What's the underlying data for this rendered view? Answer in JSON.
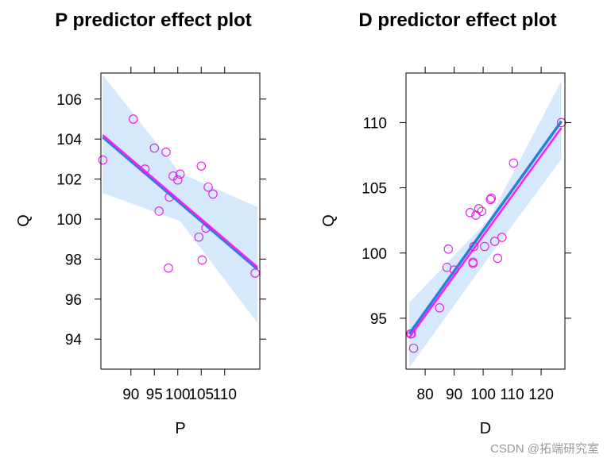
{
  "chart_data": [
    {
      "type": "scatter",
      "title": "P predictor effect plot",
      "xlabel": "P",
      "ylabel": "Q",
      "xlim": [
        83.6,
        117.5
      ],
      "ylim": [
        92.5,
        107.3
      ],
      "xticks": [
        90,
        95,
        100,
        105,
        110
      ],
      "xtick_labels": [
        "90",
        "95",
        "100",
        "105",
        "110"
      ],
      "yticks": [
        94,
        96,
        98,
        100,
        102,
        104,
        106
      ],
      "ytick_labels": [
        "94",
        "96",
        "98",
        "100",
        "102",
        "104",
        "106"
      ],
      "points": {
        "x": [
          84,
          90.5,
          93,
          95,
          96,
          97.5,
          98,
          98.2,
          99,
          100,
          100.5,
          105,
          104.5,
          105.2,
          106,
          106.5,
          107.5,
          116.5
        ],
        "y": [
          102.95,
          105.0,
          102.5,
          103.55,
          100.4,
          103.35,
          97.55,
          101.1,
          102.15,
          101.95,
          102.25,
          102.65,
          99.1,
          97.95,
          99.55,
          101.6,
          101.25,
          97.3
        ]
      },
      "fit_line": {
        "x": [
          84,
          117
        ],
        "y": [
          104.1,
          97.5
        ]
      },
      "alt_fit_line": {
        "x": [
          84,
          117
        ],
        "y": [
          104.2,
          97.6
        ]
      },
      "band_upper": {
        "x": [
          84,
          100.5,
          117
        ],
        "y": [
          107.2,
          102.3,
          100.6
        ]
      },
      "band_lower": {
        "x": [
          84,
          100.5,
          117
        ],
        "y": [
          101.3,
          99.9,
          94.8
        ]
      },
      "colors": {
        "points": "#e616e6",
        "fit": "#2a7fd6",
        "alt_fit": "#ff1aff",
        "band": "#d6e8fb"
      }
    },
    {
      "type": "scatter",
      "title": "D predictor effect plot",
      "xlabel": "D",
      "ylabel": "Q",
      "xlim": [
        73.4,
        128.2
      ],
      "ylim": [
        91.1,
        113.8
      ],
      "xticks": [
        80,
        90,
        100,
        110,
        120
      ],
      "xtick_labels": [
        "80",
        "90",
        "100",
        "110",
        "120"
      ],
      "yticks": [
        95,
        100,
        105,
        110
      ],
      "ytick_labels": [
        "95",
        "100",
        "105",
        "110"
      ],
      "points": {
        "x": [
          75,
          75.2,
          76,
          85,
          87.5,
          88,
          90,
          95.5,
          96.5,
          96.5,
          96.8,
          97.5,
          98.5,
          99.5,
          100.5,
          102.5,
          102.8,
          104,
          105,
          106.5,
          110.5,
          127
        ],
        "y": [
          93.8,
          93.8,
          92.7,
          95.8,
          98.9,
          100.3,
          98.7,
          103.1,
          99.2,
          99.3,
          100.5,
          102.9,
          103.4,
          103.2,
          100.5,
          104.1,
          104.2,
          100.9,
          99.6,
          101.2,
          106.9,
          110.0
        ]
      },
      "fit_line": {
        "x": [
          74.5,
          127
        ],
        "y": [
          93.8,
          110.1
        ]
      },
      "alt_fit_line": {
        "x": [
          74.5,
          127
        ],
        "y": [
          93.5,
          109.6
        ]
      },
      "band_upper": {
        "x": [
          74.5,
          102,
          127
        ],
        "y": [
          96.2,
          102.6,
          113.2
        ]
      },
      "band_lower": {
        "x": [
          74.5,
          102,
          127
        ],
        "y": [
          91.2,
          99.7,
          107.2
        ]
      },
      "colors": {
        "points": "#e616e6",
        "fit": "#2a7fd6",
        "alt_fit": "#ff1aff",
        "band": "#d6e8fb"
      }
    }
  ],
  "watermark": "CSDN @拓端研究室"
}
